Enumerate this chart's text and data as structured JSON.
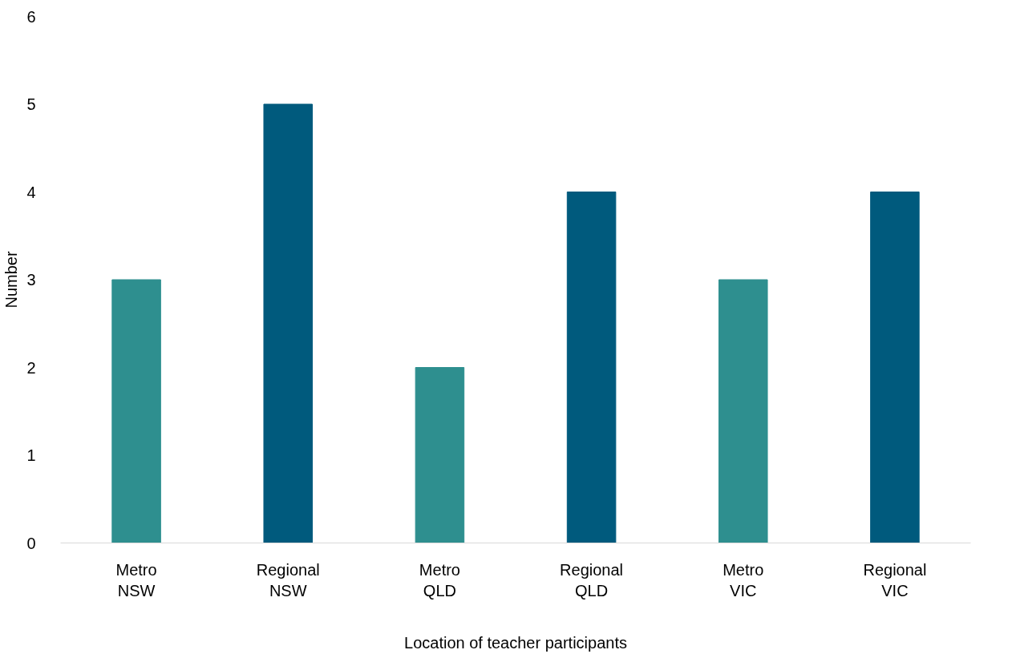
{
  "chart_data": {
    "type": "bar",
    "xlabel": "Location of teacher participants",
    "ylabel": "Number",
    "categories": [
      "Metro\nNSW",
      "Regional\nNSW",
      "Metro\nQLD",
      "Regional\nQLD",
      "Metro\nVIC",
      "Regional\nVIC"
    ],
    "values": [
      3,
      5,
      2,
      4,
      3,
      4
    ],
    "colors": [
      "#2e8f8f",
      "#005a7d",
      "#2e8f8f",
      "#005a7d",
      "#2e8f8f",
      "#005a7d"
    ],
    "ylim": [
      0,
      6
    ],
    "yticks": [
      0,
      1,
      2,
      3,
      4,
      5,
      6
    ],
    "grid": false
  }
}
